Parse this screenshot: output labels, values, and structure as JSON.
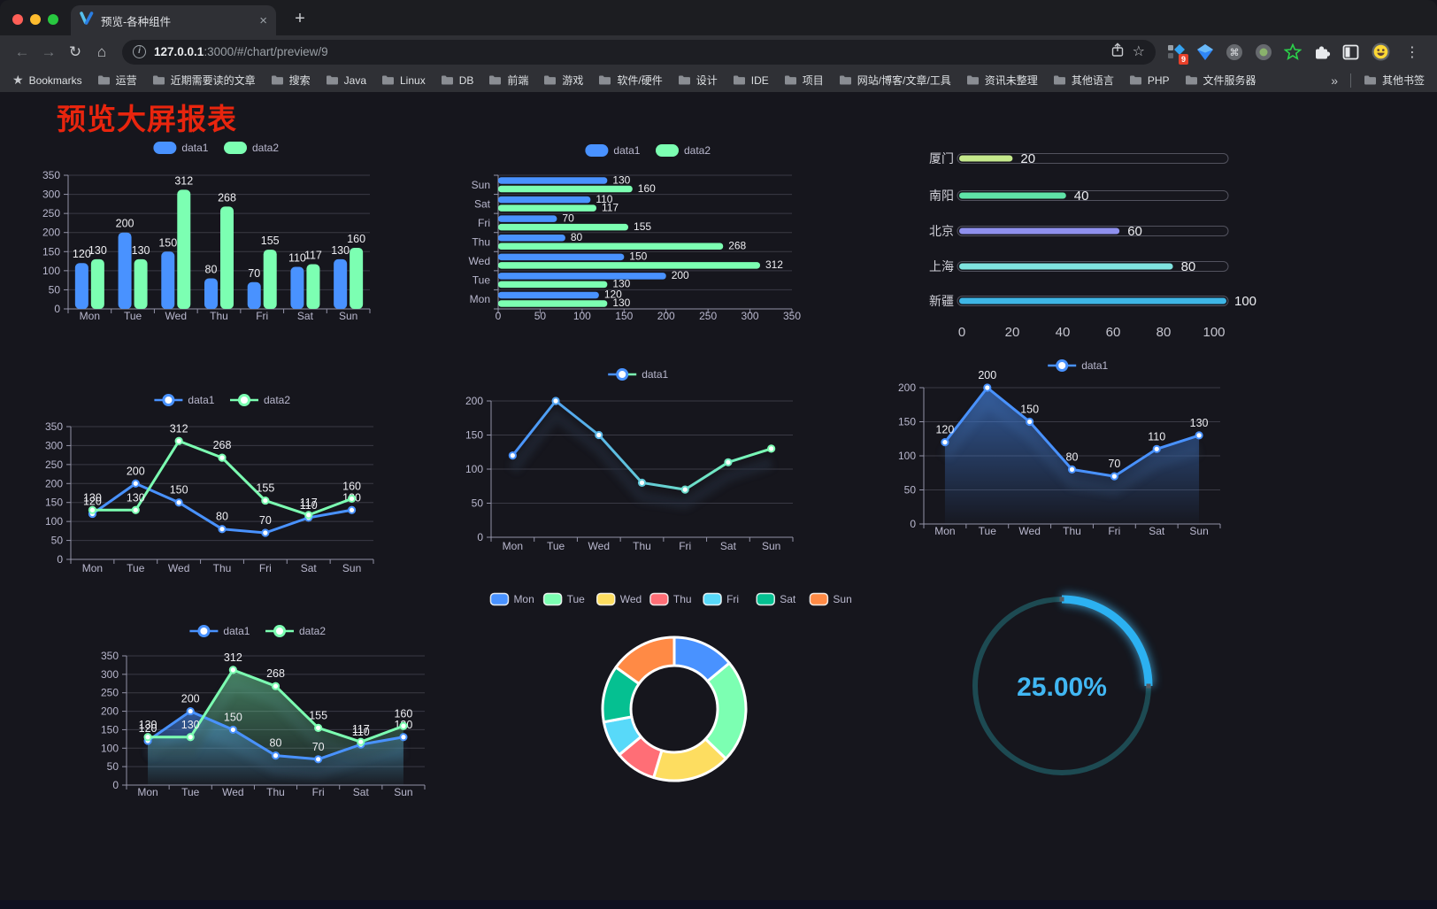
{
  "browser": {
    "tab_title": "预览-各种组件",
    "tab_close_glyph": "×",
    "new_tab_glyph": "+",
    "back_glyph": "←",
    "forward_glyph": "→",
    "reload_glyph": "↻",
    "home_glyph": "⌂",
    "url_host": "127.0.0.1",
    "url_rest": ":3000/#/chart/preview/9",
    "share_glyph": "⇧",
    "star_glyph": "☆",
    "extension_badge": "9",
    "menu_glyph": "⋮",
    "bookmarks_star_glyph": "★",
    "bookmarks_label": "Bookmarks",
    "bookmarks": [
      "运营",
      "近期需要读的文章",
      "搜索",
      "Java",
      "Linux",
      "DB",
      "前端",
      "游戏",
      "软件/硬件",
      "设计",
      "IDE",
      "项目",
      "网站/博客/文章/工具",
      "资讯未整理",
      "其他语言",
      "PHP",
      "文件服务器"
    ],
    "overflow_glyph": "»",
    "other_bookmarks": "其他书签"
  },
  "page": {
    "title": "预览大屏报表",
    "title_color": "#e8250e",
    "background": "#16161d"
  },
  "chart_data": [
    {
      "id": "bar-vertical",
      "type": "bar",
      "categories": [
        "Mon",
        "Tue",
        "Wed",
        "Thu",
        "Fri",
        "Sat",
        "Sun"
      ],
      "series": [
        {
          "name": "data1",
          "color": "#4992ff",
          "values": [
            120,
            200,
            150,
            80,
            70,
            110,
            130
          ]
        },
        {
          "name": "data2",
          "color": "#7cffb2",
          "values": [
            130,
            130,
            312,
            268,
            155,
            117,
            160
          ]
        }
      ],
      "ylim": [
        0,
        350
      ],
      "ytick_step": 50,
      "labels": true,
      "legend": [
        "data1",
        "data2"
      ]
    },
    {
      "id": "bar-horizontal",
      "type": "hbar",
      "categories": [
        "Mon",
        "Tue",
        "Wed",
        "Thu",
        "Fri",
        "Sat",
        "Sun"
      ],
      "series": [
        {
          "name": "data1",
          "color": "#4992ff",
          "values": [
            120,
            200,
            150,
            80,
            70,
            110,
            130
          ]
        },
        {
          "name": "data2",
          "color": "#7cffb2",
          "values": [
            130,
            130,
            312,
            268,
            155,
            117,
            160
          ]
        }
      ],
      "xlim": [
        0,
        350
      ],
      "xtick_step": 50,
      "labels": true,
      "legend": [
        "data1",
        "data2"
      ]
    },
    {
      "id": "progress-bars",
      "type": "progress",
      "max": 100,
      "xticks": [
        0,
        20,
        40,
        60,
        80,
        100
      ],
      "items": [
        {
          "label": "厦门",
          "value": 20,
          "color": "#c5e98c"
        },
        {
          "label": "南阳",
          "value": 40,
          "color": "#5fe3a7"
        },
        {
          "label": "北京",
          "value": 60,
          "color": "#8f90ee"
        },
        {
          "label": "上海",
          "value": 80,
          "color": "#7fe3df"
        },
        {
          "label": "新疆",
          "value": 100,
          "color": "#3eb6e6"
        }
      ]
    },
    {
      "id": "line-basic",
      "type": "line",
      "categories": [
        "Mon",
        "Tue",
        "Wed",
        "Thu",
        "Fri",
        "Sat",
        "Sun"
      ],
      "series": [
        {
          "name": "data1",
          "color": "#4992ff",
          "values": [
            120,
            200,
            150,
            80,
            70,
            110,
            130
          ]
        },
        {
          "name": "data2",
          "color": "#7cffb2",
          "values": [
            130,
            130,
            312,
            268,
            155,
            117,
            160
          ]
        }
      ],
      "ylim": [
        0,
        350
      ],
      "ytick_step": 50,
      "labels": true,
      "legend": [
        "data1",
        "data2"
      ]
    },
    {
      "id": "line-gradient",
      "type": "line",
      "categories": [
        "Mon",
        "Tue",
        "Wed",
        "Thu",
        "Fri",
        "Sat",
        "Sun"
      ],
      "series": [
        {
          "name": "data1",
          "gradient": [
            "#4992ff",
            "#7cffb2"
          ],
          "values": [
            120,
            200,
            150,
            80,
            70,
            110,
            130
          ]
        }
      ],
      "ylim": [
        0,
        200
      ],
      "ytick_step": 50,
      "labels": false,
      "shadow": true,
      "legend": [
        "data1"
      ]
    },
    {
      "id": "line-area",
      "type": "line",
      "categories": [
        "Mon",
        "Tue",
        "Wed",
        "Thu",
        "Fri",
        "Sat",
        "Sun"
      ],
      "series": [
        {
          "name": "data1",
          "color": "#4992ff",
          "area": true,
          "values": [
            120,
            200,
            150,
            80,
            70,
            110,
            130
          ]
        }
      ],
      "ylim": [
        0,
        200
      ],
      "ytick_step": 50,
      "labels": true,
      "shadow": true,
      "legend": [
        "data1"
      ]
    },
    {
      "id": "line-area-double",
      "type": "line",
      "categories": [
        "Mon",
        "Tue",
        "Wed",
        "Thu",
        "Fri",
        "Sat",
        "Sun"
      ],
      "series": [
        {
          "name": "data1",
          "color": "#4992ff",
          "area": true,
          "values": [
            120,
            200,
            150,
            80,
            70,
            110,
            130
          ]
        },
        {
          "name": "data2",
          "color": "#7cffb2",
          "area": true,
          "values": [
            130,
            130,
            312,
            268,
            155,
            117,
            160
          ]
        }
      ],
      "ylim": [
        0,
        350
      ],
      "ytick_step": 50,
      "labels": true,
      "shadow": true,
      "legend": [
        "data1",
        "data2"
      ]
    },
    {
      "id": "pie-donut",
      "type": "pie",
      "legend": [
        "Mon",
        "Tue",
        "Wed",
        "Thu",
        "Fri",
        "Sat",
        "Sun"
      ],
      "slices": [
        {
          "name": "Mon",
          "value": 120,
          "color": "#4992ff"
        },
        {
          "name": "Tue",
          "value": 200,
          "color": "#7cffb2"
        },
        {
          "name": "Wed",
          "value": 150,
          "color": "#fddd60"
        },
        {
          "name": "Thu",
          "value": 80,
          "color": "#ff6e76"
        },
        {
          "name": "Fri",
          "value": 70,
          "color": "#58d9f9"
        },
        {
          "name": "Sat",
          "value": 110,
          "color": "#05c091"
        },
        {
          "name": "Sun",
          "value": 130,
          "color": "#ff8a45"
        }
      ]
    },
    {
      "id": "gauge",
      "type": "gauge",
      "percent": 25,
      "label": "25.00%",
      "color": "#2cb1f1",
      "track_color": "#1d4a52",
      "text_color": "#41b7f3"
    }
  ]
}
